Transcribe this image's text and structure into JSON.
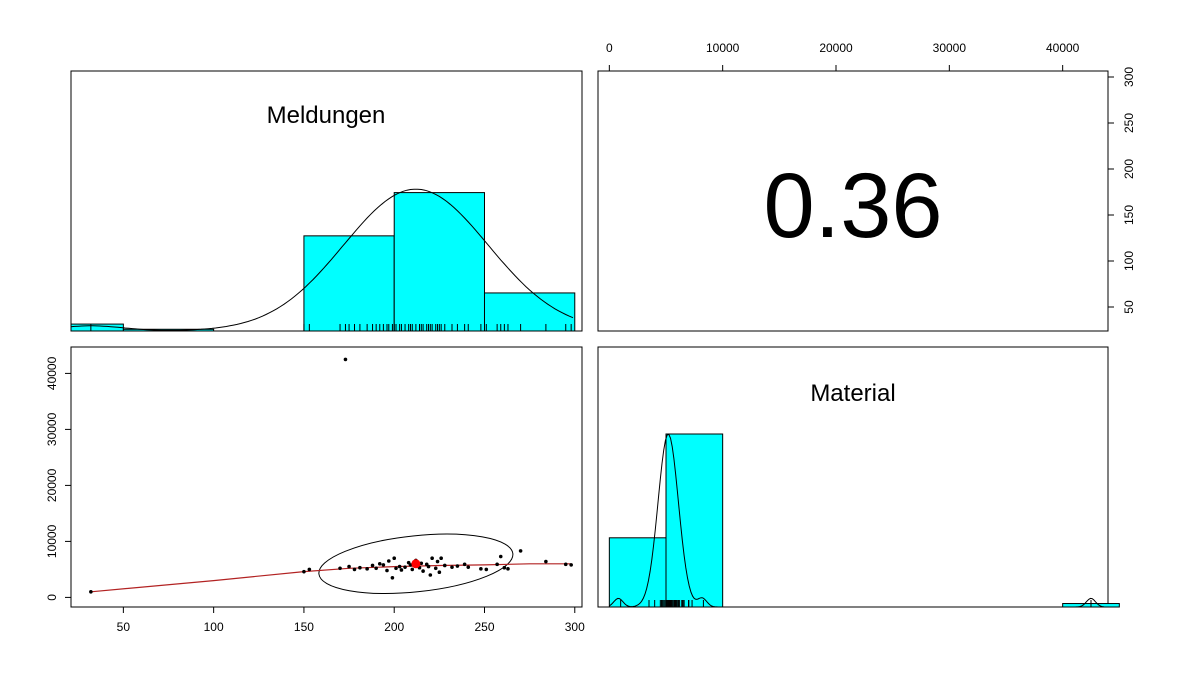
{
  "chart_data": {
    "type": "scatter",
    "variables": [
      "Meldungen",
      "Material"
    ],
    "correlation": "0.36",
    "colors": {
      "hist_fill": "#00FFFF",
      "smooth_line": "#B22222",
      "centroid": "#FF0000",
      "points": "#000000"
    },
    "axes": {
      "meldungen": {
        "range": [
          21,
          304
        ],
        "ticks": [
          "50",
          "100",
          "150",
          "200",
          "250",
          "300"
        ]
      },
      "material": {
        "range": [
          -1000,
          44000
        ],
        "ticks": [
          "0",
          "10000",
          "20000",
          "30000",
          "40000"
        ]
      },
      "meldungen_right": {
        "ticks": [
          "50",
          "100",
          "150",
          "200",
          "250",
          "300"
        ]
      }
    },
    "hist_meldungen": {
      "bins": [
        [
          21,
          50,
          0.04
        ],
        [
          50,
          100,
          0.01
        ],
        [
          100,
          150,
          0.0
        ],
        [
          150,
          200,
          0.55
        ],
        [
          200,
          250,
          0.8
        ],
        [
          250,
          300,
          0.22
        ]
      ]
    },
    "hist_material": {
      "bins": [
        [
          0,
          5000,
          0.4
        ],
        [
          5000,
          10000,
          1.0
        ],
        [
          10000,
          40000,
          0.0
        ],
        [
          40000,
          45000,
          0.02
        ]
      ]
    },
    "scatter_points": [
      {
        "x": 32,
        "y": 1000
      },
      {
        "x": 150,
        "y": 4600
      },
      {
        "x": 153,
        "y": 5000
      },
      {
        "x": 170,
        "y": 5200
      },
      {
        "x": 173,
        "y": 42500
      },
      {
        "x": 175,
        "y": 5500
      },
      {
        "x": 178,
        "y": 5000
      },
      {
        "x": 181,
        "y": 5300
      },
      {
        "x": 185,
        "y": 5100
      },
      {
        "x": 188,
        "y": 5700
      },
      {
        "x": 190,
        "y": 5200
      },
      {
        "x": 192,
        "y": 6000
      },
      {
        "x": 194,
        "y": 5800
      },
      {
        "x": 196,
        "y": 4800
      },
      {
        "x": 197,
        "y": 6500
      },
      {
        "x": 199,
        "y": 3500
      },
      {
        "x": 200,
        "y": 7000
      },
      {
        "x": 201,
        "y": 5200
      },
      {
        "x": 203,
        "y": 5500
      },
      {
        "x": 204,
        "y": 4900
      },
      {
        "x": 206,
        "y": 5400
      },
      {
        "x": 208,
        "y": 6200
      },
      {
        "x": 209,
        "y": 5800
      },
      {
        "x": 210,
        "y": 5000
      },
      {
        "x": 212,
        "y": 6600
      },
      {
        "x": 214,
        "y": 5300
      },
      {
        "x": 215,
        "y": 6100
      },
      {
        "x": 216,
        "y": 4700
      },
      {
        "x": 218,
        "y": 5900
      },
      {
        "x": 219,
        "y": 5500
      },
      {
        "x": 220,
        "y": 4000
      },
      {
        "x": 221,
        "y": 7000
      },
      {
        "x": 223,
        "y": 5200
      },
      {
        "x": 224,
        "y": 6400
      },
      {
        "x": 225,
        "y": 4500
      },
      {
        "x": 226,
        "y": 7000
      },
      {
        "x": 228,
        "y": 5700
      },
      {
        "x": 232,
        "y": 5400
      },
      {
        "x": 235,
        "y": 5600
      },
      {
        "x": 239,
        "y": 5900
      },
      {
        "x": 241,
        "y": 5400
      },
      {
        "x": 248,
        "y": 5100
      },
      {
        "x": 251,
        "y": 5000
      },
      {
        "x": 257,
        "y": 5900
      },
      {
        "x": 259,
        "y": 7300
      },
      {
        "x": 261,
        "y": 5300
      },
      {
        "x": 263,
        "y": 5100
      },
      {
        "x": 270,
        "y": 8300
      },
      {
        "x": 284,
        "y": 6400
      },
      {
        "x": 295,
        "y": 5900
      },
      {
        "x": 298,
        "y": 5800
      }
    ],
    "centroid": {
      "x": 212,
      "y": 6000
    },
    "smooth_line": [
      [
        32,
        1000
      ],
      [
        100,
        3000
      ],
      [
        150,
        4600
      ],
      [
        175,
        5200
      ],
      [
        200,
        5500
      ],
      [
        225,
        5700
      ],
      [
        250,
        5800
      ],
      [
        275,
        6000
      ],
      [
        298,
        6000
      ]
    ],
    "ellipse": {
      "cx": 212,
      "cy": 6000,
      "rx_data": 54,
      "ry_data": 5000,
      "tilt_deg": -6
    },
    "titles": {
      "meldungen": "Meldungen",
      "material": "Material"
    }
  }
}
